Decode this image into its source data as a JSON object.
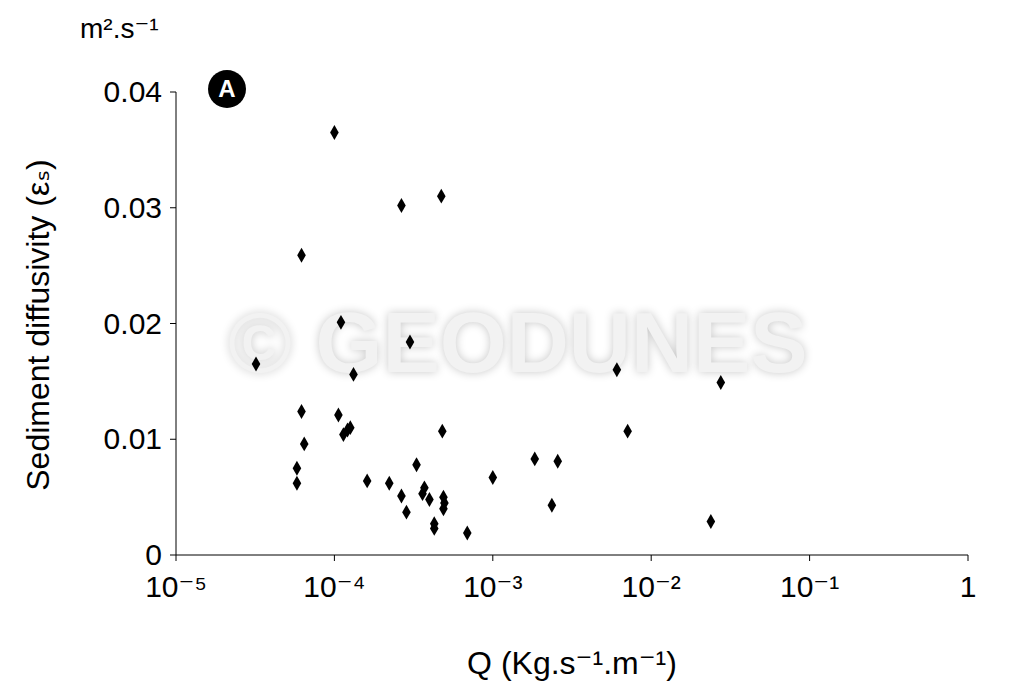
{
  "chart_data": {
    "type": "scatter",
    "panel_label": "A",
    "watermark": "© GEODUNES",
    "y_unit": "m².s⁻¹",
    "y_label": "Sediment diffusivity (εₛ)",
    "x_label": "Q (Kg.s⁻¹.m⁻¹)",
    "log": "x",
    "grid": false,
    "color": "#000000",
    "marker": "diamond",
    "xlim": [
      1e-05,
      1
    ],
    "xticks": [
      {
        "value": 1e-05,
        "label": "10⁻⁵"
      },
      {
        "value": 0.0001,
        "label": "10⁻⁴"
      },
      {
        "value": 0.001,
        "label": "10⁻³"
      },
      {
        "value": 0.01,
        "label": "10⁻²"
      },
      {
        "value": 0.1,
        "label": "10⁻¹"
      },
      1
    ],
    "ylim": [
      0,
      0.04
    ],
    "yticks": [
      0,
      0.01,
      0.02,
      0.03,
      0.04
    ],
    "x": [
      0.0001,
      0.000265,
      0.000473,
      6.2e-05,
      0.00011,
      3.2e-05,
      0.0003,
      0.000132,
      0.00607,
      0.0275,
      6.2e-05,
      0.000106,
      0.000121,
      0.000114,
      0.000126,
      0.00048,
      0.0071,
      6.45e-05,
      5.8e-05,
      5.8e-05,
      0.00033,
      0.00184,
      0.00257,
      0.000161,
      0.000222,
      0.00037,
      0.00036,
      0.000398,
      0.001,
      0.000265,
      0.000285,
      0.000488,
      0.000495,
      0.000488,
      0.00236,
      0.000427,
      0.000427,
      0.00069,
      0.0238
    ],
    "values": [
      0.0365,
      0.0302,
      0.031,
      0.0259,
      0.0201,
      0.0165,
      0.0184,
      0.0156,
      0.016,
      0.0149,
      0.0124,
      0.0121,
      0.0108,
      0.0104,
      0.011,
      0.0107,
      0.0107,
      0.0096,
      0.0075,
      0.0062,
      0.0078,
      0.0083,
      0.0081,
      0.0064,
      0.0062,
      0.0058,
      0.0053,
      0.0048,
      0.0067,
      0.0051,
      0.0037,
      0.005,
      0.0045,
      0.004,
      0.0043,
      0.0027,
      0.0023,
      0.0019,
      0.0029
    ]
  }
}
